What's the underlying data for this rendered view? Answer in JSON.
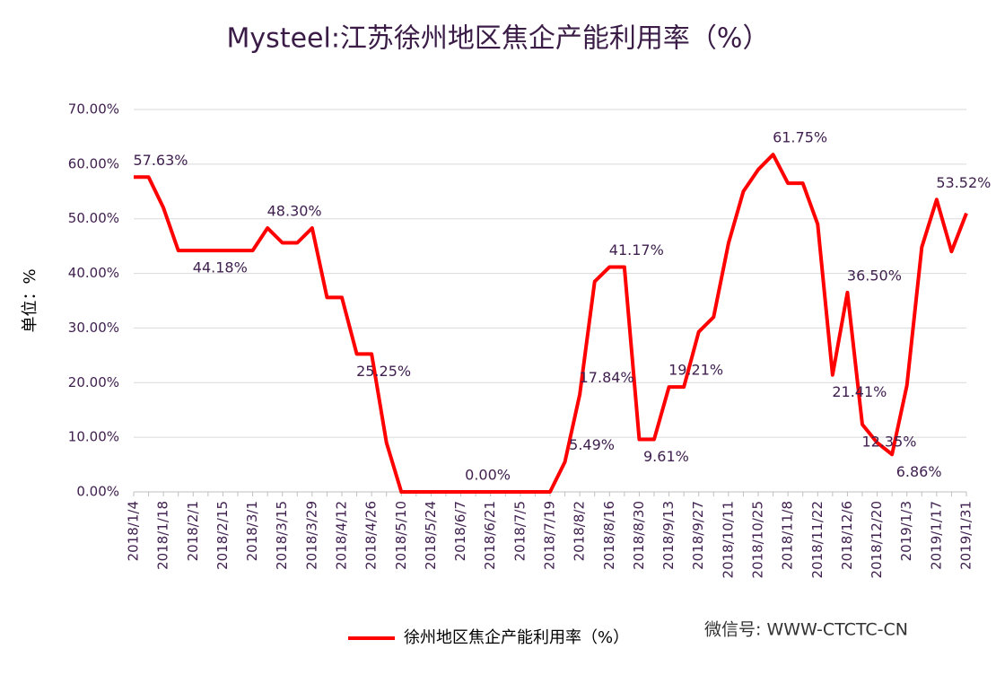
{
  "chart_data": {
    "type": "line",
    "title": "Mysteel:江苏徐州地区焦企产能利用率（%）",
    "y_label": "单位：%",
    "watermark": "微信号: WWW-CTCTC-CN",
    "categories": [
      "2018/1/4",
      null,
      "2018/1/18",
      null,
      "2018/2/1",
      null,
      "2018/2/15",
      null,
      "2018/3/1",
      null,
      "2018/3/15",
      null,
      "2018/3/29",
      null,
      "2018/4/12",
      null,
      "2018/4/26",
      null,
      "2018/5/10",
      null,
      "2018/5/24",
      null,
      "2018/6/7",
      null,
      "2018/6/21",
      null,
      "2018/7/5",
      null,
      "2018/7/19",
      null,
      "2018/8/2",
      null,
      "2018/8/16",
      null,
      "2018/8/30",
      null,
      "2018/9/13",
      null,
      "2018/9/27",
      null,
      "2018/10/11",
      null,
      "2018/10/25",
      null,
      "2018/11/8",
      null,
      "2018/11/22",
      null,
      "2018/12/6",
      null,
      "2018/12/20",
      null,
      "2019/1/3",
      null,
      "2019/1/17",
      null,
      "2019/1/31"
    ],
    "series": [
      {
        "name": "徐州地区焦企产能利用率（%）",
        "color": "#ff0000",
        "values": [
          57.63,
          57.63,
          52,
          44.18,
          44.18,
          44.18,
          44.18,
          44.18,
          44.18,
          48.3,
          45.6,
          45.6,
          48.3,
          35.6,
          35.6,
          25.25,
          25.25,
          9,
          0,
          0,
          0,
          0,
          0,
          0,
          0,
          0,
          0,
          0,
          0,
          5.49,
          17.84,
          38.5,
          41.17,
          41.17,
          9.61,
          9.61,
          19.21,
          19.21,
          29.3,
          32,
          45.5,
          55,
          59,
          61.75,
          56.5,
          56.5,
          49,
          21.41,
          36.5,
          12.35,
          9,
          6.86,
          19.5,
          44.8,
          53.52,
          44,
          51
        ],
        "value_labels": [
          "57.63%",
          null,
          null,
          null,
          "44.18%",
          null,
          null,
          null,
          null,
          "48.30%",
          null,
          null,
          null,
          null,
          null,
          "25.25%",
          null,
          null,
          null,
          null,
          null,
          null,
          "0.00%",
          null,
          null,
          null,
          null,
          null,
          null,
          "5.49%",
          "17.84%",
          null,
          "41.17%",
          null,
          "9.61%",
          null,
          "19.21%",
          null,
          null,
          null,
          null,
          null,
          null,
          "61.75%",
          null,
          null,
          null,
          "21.41%",
          "36.50%",
          "12.35%",
          null,
          "6.86%",
          null,
          null,
          "53.52%",
          null,
          null
        ]
      }
    ],
    "ylim": [
      0,
      70
    ],
    "yticks": [
      {
        "value": 0,
        "label": "0.00%"
      },
      {
        "value": 10,
        "label": "10.00%"
      },
      {
        "value": 20,
        "label": "20.00%"
      },
      {
        "value": 30,
        "label": "30.00%"
      },
      {
        "value": 40,
        "label": "40.00%"
      },
      {
        "value": 50,
        "label": "50.00%"
      },
      {
        "value": 60,
        "label": "60.00%"
      },
      {
        "value": 70,
        "label": "70.00%"
      }
    ],
    "grid": true,
    "legend": "bottom"
  }
}
